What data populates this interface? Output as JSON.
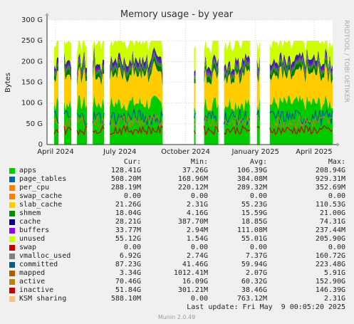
{
  "chart_data": {
    "type": "area",
    "title": "Memory usage - by year",
    "ylabel": "Bytes",
    "side_label": "RRDTOOL / TOBI OETIKER",
    "yticks": [
      "0",
      "50 G",
      "100 G",
      "150 G",
      "200 G",
      "250 G",
      "300 G"
    ],
    "ylim": [
      0,
      300
    ],
    "xticks": [
      "April 2024",
      "July 2024",
      "October 2024",
      "January 2025",
      "April 2025"
    ],
    "gaps": [
      [
        0.0,
        0.02
      ],
      [
        0.045,
        0.055
      ],
      [
        0.09,
        0.1
      ],
      [
        0.145,
        0.155
      ],
      [
        0.205,
        0.215
      ],
      [
        0.41,
        0.425
      ],
      [
        0.435,
        0.445
      ],
      [
        0.455,
        0.465
      ],
      [
        0.475,
        0.49
      ],
      [
        0.5,
        0.51
      ],
      [
        0.525,
        0.545
      ],
      [
        0.605,
        0.615
      ],
      [
        0.715,
        0.73
      ],
      [
        0.75,
        0.775
      ]
    ],
    "stacked_series": [
      {
        "name": "apps",
        "color": "#00cc00",
        "level": 100
      },
      {
        "name": "slab_cache",
        "color": "#ffcc00",
        "level": 70
      },
      {
        "name": "shmem",
        "color": "#007700",
        "level": 12
      },
      {
        "name": "cache",
        "color": "#2a8c2a",
        "level": 8
      },
      {
        "name": "buffers",
        "color": "#8800aa",
        "level": 4
      },
      {
        "name": "swap_cache",
        "color": "#3322aa",
        "level": 10
      },
      {
        "name": "unused",
        "color": "#ccff00",
        "level": 50
      }
    ],
    "line_series": [
      {
        "name": "committed",
        "color": "#0055aa",
        "level": 65
      },
      {
        "name": "active",
        "color": "#b8860b",
        "level": 55
      },
      {
        "name": "inactive",
        "color": "#cc0000",
        "level": 35
      }
    ],
    "legend_header": {
      "cur": "Cur:",
      "min": "Min:",
      "avg": "Avg:",
      "max": "Max:"
    },
    "legend": [
      {
        "name": "apps",
        "color": "#00cc00",
        "cur": "128.41G",
        "min": "37.26G",
        "avg": "106.39G",
        "max": "208.94G"
      },
      {
        "name": "page_tables",
        "color": "#0066b3",
        "cur": "508.20M",
        "min": "168.96M",
        "avg": "384.08M",
        "max": "929.31M"
      },
      {
        "name": "per_cpu",
        "color": "#ff8000",
        "cur": "288.19M",
        "min": "220.12M",
        "avg": "289.32M",
        "max": "352.69M"
      },
      {
        "name": "swap_cache",
        "color": "#ff8000",
        "cur": "0.00",
        "min": "0.00",
        "avg": "0.00",
        "max": "0.00"
      },
      {
        "name": "slab_cache",
        "color": "#ffcc00",
        "cur": "21.26G",
        "min": "2.31G",
        "avg": "55.23G",
        "max": "110.53G"
      },
      {
        "name": "shmem",
        "color": "#008f00",
        "cur": "18.04G",
        "min": "4.16G",
        "avg": "15.59G",
        "max": "21.00G"
      },
      {
        "name": "cache",
        "color": "#00008f",
        "cur": "28.21G",
        "min": "387.70M",
        "avg": "18.85G",
        "max": "74.31G"
      },
      {
        "name": "buffers",
        "color": "#8f00ff",
        "cur": "33.77M",
        "min": "2.94M",
        "avg": "111.08M",
        "max": "237.44M"
      },
      {
        "name": "unused",
        "color": "#ccff00",
        "cur": "55.12G",
        "min": "1.54G",
        "avg": "55.01G",
        "max": "205.90G"
      },
      {
        "name": "swap",
        "color": "#cc0000",
        "cur": "0.00",
        "min": "0.00",
        "avg": "0.00",
        "max": "0.00"
      },
      {
        "name": "vmalloc_used",
        "color": "#7f7f7f",
        "cur": "6.92G",
        "min": "2.74G",
        "avg": "7.37G",
        "max": "160.72G"
      },
      {
        "name": "committed",
        "color": "#005c91",
        "cur": "87.23G",
        "min": "41.46G",
        "avg": "59.94G",
        "max": "223.48G"
      },
      {
        "name": "mapped",
        "color": "#b35a00",
        "cur": "3.34G",
        "min": "1012.41M",
        "avg": "2.07G",
        "max": "5.91G"
      },
      {
        "name": "active",
        "color": "#b8860b",
        "cur": "70.46G",
        "min": "16.09G",
        "avg": "60.32G",
        "max": "152.90G"
      },
      {
        "name": "inactive",
        "color": "#cc0000",
        "cur": "51.84G",
        "min": "301.21M",
        "avg": "38.46G",
        "max": "146.39G"
      },
      {
        "name": "KSM sharing",
        "color": "#ffbf80",
        "cur": "588.10M",
        "min": "0.00",
        "avg": "763.12M",
        "max": "2.31G"
      }
    ],
    "last_update": "Last update: Fri May  9 00:05:20 2025",
    "footer": "Munin 2.0.49"
  }
}
